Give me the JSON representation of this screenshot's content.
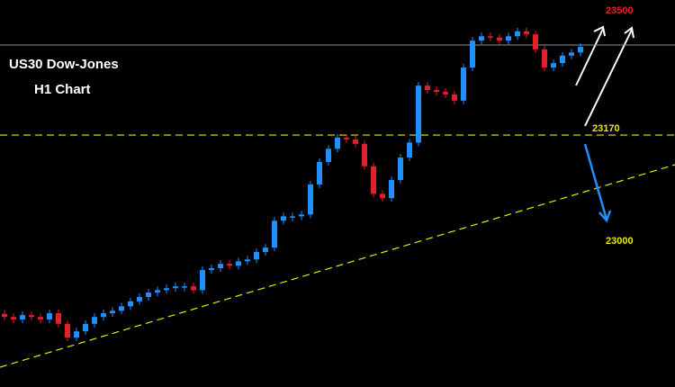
{
  "chart_data": {
    "type": "candlestick",
    "title": "US30 Dow-Jones",
    "subtitle": "H1 Chart",
    "ylim": [
      22767,
      23386
    ],
    "up_color": "#1e90ff",
    "down_color": "#e0202a",
    "open": [
      22884,
      22879,
      22875,
      22882,
      22879,
      22875,
      22885,
      22868,
      22846,
      22856,
      22868,
      22879,
      22885,
      22889,
      22896,
      22904,
      22911,
      22918,
      22922,
      22925,
      22928,
      22928,
      22922,
      22954,
      22957,
      22964,
      22961,
      22968,
      22971,
      22983,
      22990,
      23033,
      23040,
      23040,
      23043,
      23091,
      23127,
      23148,
      23166,
      23163,
      23156,
      23120,
      23076,
      23069,
      23098,
      23134,
      23158,
      23249,
      23242,
      23239,
      23235,
      23225,
      23278,
      23321,
      23328,
      23326,
      23321,
      23328,
      23336,
      23331,
      23307,
      23278,
      23285,
      23297,
      23302
    ],
    "close": [
      22879,
      22875,
      22882,
      22879,
      22875,
      22885,
      22868,
      22846,
      22856,
      22868,
      22879,
      22885,
      22889,
      22896,
      22904,
      22911,
      22918,
      22922,
      22925,
      22928,
      22928,
      22922,
      22954,
      22957,
      22964,
      22961,
      22968,
      22971,
      22983,
      22990,
      23033,
      23040,
      23040,
      23043,
      23091,
      23127,
      23148,
      23166,
      23163,
      23156,
      23120,
      23076,
      23069,
      23098,
      23134,
      23158,
      23249,
      23242,
      23239,
      23235,
      23225,
      23278,
      23321,
      23328,
      23326,
      23321,
      23328,
      23336,
      23331,
      23307,
      23278,
      23285,
      23297,
      23302,
      23311
    ],
    "last_price_line": 23314,
    "levels": [
      23500,
      23170,
      23000
    ],
    "level_colors": [
      "#e0202a",
      "#e8e800",
      "#e8e800"
    ]
  }
}
